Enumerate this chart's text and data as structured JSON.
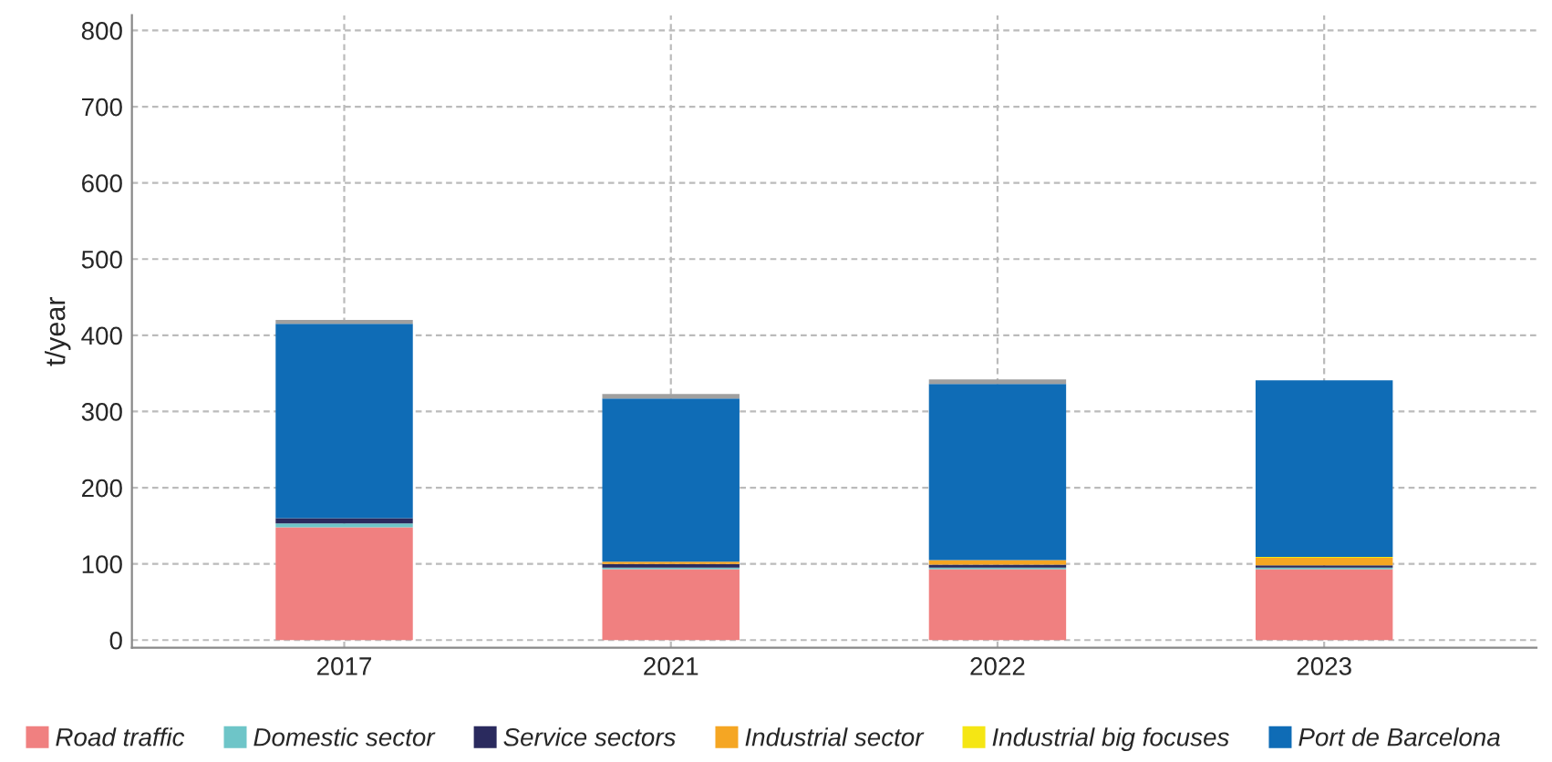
{
  "chart_data": {
    "type": "bar",
    "stacked": true,
    "ylabel": "t/year",
    "categories": [
      "2017",
      "2021",
      "2022",
      "2023"
    ],
    "ylim": [
      -10,
      820
    ],
    "yticks": [
      0,
      100,
      200,
      300,
      400,
      500,
      600,
      700,
      800
    ],
    "grid": true,
    "legend": "bottom",
    "series": [
      {
        "name": "Road traffic",
        "color": "#f08080",
        "values": [
          148,
          93,
          93,
          93
        ]
      },
      {
        "name": "Domestic sector",
        "color": "#6ec5c8",
        "values": [
          5,
          2,
          2,
          2
        ]
      },
      {
        "name": "Service sectors",
        "color": "#2a2a5e",
        "values": [
          7,
          5,
          4,
          3
        ]
      },
      {
        "name": "Industrial sector",
        "color": "#f5a623",
        "values": [
          0,
          3,
          6,
          10
        ]
      },
      {
        "name": "Industrial big focuses",
        "color": "#f5e614",
        "values": [
          0,
          0,
          null,
          1
        ]
      },
      {
        "name": "Port de Barcelona",
        "color": "#0f6cb6",
        "values": [
          255,
          214,
          231,
          232
        ]
      },
      {
        "color": "#a0a0a0",
        "values": [
          5,
          6,
          6,
          0
        ]
      }
    ]
  }
}
